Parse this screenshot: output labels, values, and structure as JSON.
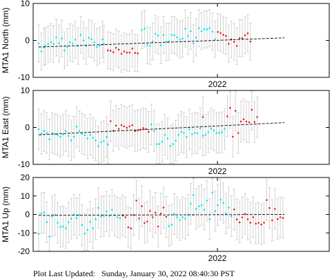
{
  "footer": {
    "label": "Plot Last Updated:",
    "value": "Sunday, January 30, 2022 08:40:30 PST"
  },
  "colors": {
    "series_a": "#00e5ee",
    "series_b": "#e8201c",
    "error_bar": "#c8c8c8",
    "trend": "#000000"
  },
  "chart_data": [
    {
      "type": "scatter",
      "ylabel": "MTA1 North (mm)",
      "xtick_labels": [
        "2022"
      ],
      "ylim": [
        -10,
        10
      ],
      "yticks": [
        -10,
        0,
        10
      ],
      "error": 5,
      "trend": [
        -1.8,
        0.7
      ],
      "series": [
        {
          "color_key": "series_a",
          "points": [
            [
              0,
              -0.8
            ],
            [
              2,
              -3
            ],
            [
              4,
              -1.8
            ],
            [
              5,
              -1.5
            ],
            [
              7,
              -1
            ],
            [
              9,
              -0.5
            ],
            [
              11,
              -1
            ],
            [
              13,
              0.8
            ],
            [
              15,
              -0.8
            ],
            [
              17,
              0.5
            ],
            [
              19,
              -2.7
            ],
            [
              21,
              -1.8
            ],
            [
              23,
              -0.5
            ],
            [
              25,
              -0.8
            ],
            [
              27,
              0.2
            ],
            [
              29,
              -1.5
            ],
            [
              31,
              1.5
            ],
            [
              33,
              0
            ],
            [
              35,
              -1.5
            ],
            [
              37,
              0.7
            ],
            [
              39,
              0.3
            ],
            [
              41,
              -0.5
            ],
            [
              43,
              -1.8
            ],
            [
              45,
              -1.4
            ],
            [
              47,
              0.3
            ],
            [
              48,
              -1
            ]
          ]
        },
        {
          "color_key": "series_b",
          "points": [
            [
              51,
              -2.7
            ],
            [
              53,
              -2.8
            ],
            [
              55,
              -3.2
            ],
            [
              57,
              -2
            ],
            [
              59,
              -2.5
            ],
            [
              61,
              -3.6
            ],
            [
              63,
              -3
            ],
            [
              65,
              -3.3
            ],
            [
              67,
              -3.3
            ],
            [
              69,
              -2.2
            ],
            [
              71,
              -3.4
            ],
            [
              73,
              -3.5
            ]
          ]
        },
        {
          "color_key": "series_a",
          "points": [
            [
              76,
              2.8
            ],
            [
              78,
              3.2
            ],
            [
              80,
              -1.3
            ],
            [
              82,
              -1.5
            ],
            [
              84,
              -0.3
            ],
            [
              86,
              1.8
            ],
            [
              88,
              1.3
            ],
            [
              90,
              -1.3
            ],
            [
              92,
              1.5
            ],
            [
              94,
              -0.4
            ],
            [
              96,
              -0.3
            ],
            [
              98,
              1.5
            ],
            [
              100,
              1.4
            ],
            [
              102,
              0.8
            ],
            [
              104,
              0.2
            ],
            [
              106,
              0.5
            ],
            [
              108,
              3.2
            ],
            [
              110,
              1.2
            ],
            [
              112,
              2.5
            ],
            [
              114,
              -0.8
            ],
            [
              116,
              0.8
            ],
            [
              118,
              3.3
            ],
            [
              120,
              2.5
            ],
            [
              122,
              3
            ],
            [
              124,
              3
            ],
            [
              126,
              3.3
            ],
            [
              128,
              2.4
            ],
            [
              130,
              0.3
            ]
          ]
        },
        {
          "color_key": "series_b",
          "points": [
            [
              132,
              2.3
            ],
            [
              134,
              2
            ],
            [
              136,
              1.5
            ],
            [
              138,
              1.2
            ],
            [
              140,
              -0.9
            ],
            [
              142,
              0.3
            ],
            [
              144,
              -0.4
            ],
            [
              146,
              -1.5
            ],
            [
              148,
              0.6
            ],
            [
              150,
              0.6
            ],
            [
              152,
              1.4
            ],
            [
              154,
              1.9
            ],
            [
              156,
              -0.3
            ]
          ]
        }
      ]
    },
    {
      "type": "scatter",
      "ylabel": "MTA1 East (mm)",
      "xtick_labels": [
        "2022"
      ],
      "ylim": [
        -10,
        10
      ],
      "yticks": [
        -10,
        0,
        10
      ],
      "error": 5.5,
      "trend": [
        -2,
        1.3
      ],
      "series": [
        {
          "color_key": "series_a",
          "points": [
            [
              0,
              -0.5
            ],
            [
              2,
              -1.7
            ],
            [
              4,
              -1
            ],
            [
              6,
              -1.5
            ],
            [
              8,
              -3.2
            ],
            [
              10,
              -1.5
            ],
            [
              12,
              -1.8
            ],
            [
              14,
              -2
            ],
            [
              16,
              -2.5
            ],
            [
              18,
              -1.9
            ],
            [
              20,
              -1
            ],
            [
              22,
              -2.3
            ],
            [
              24,
              -3.5
            ],
            [
              26,
              -2.5
            ],
            [
              28,
              0.2
            ],
            [
              30,
              -1
            ],
            [
              32,
              -1.7
            ],
            [
              34,
              -2.1
            ],
            [
              36,
              -3
            ],
            [
              38,
              -2
            ],
            [
              40,
              -2.8
            ],
            [
              42,
              -3.5
            ],
            [
              44,
              -5.1
            ],
            [
              46,
              -4
            ],
            [
              48,
              -3.7
            ],
            [
              50,
              -2.6
            ],
            [
              51,
              -4.6
            ]
          ]
        },
        {
          "color_key": "series_b",
          "points": [
            [
              53,
              1.7
            ],
            [
              55,
              -0.9
            ],
            [
              57,
              0.5
            ],
            [
              59,
              -0.4
            ],
            [
              61,
              0.6
            ],
            [
              63,
              0.3
            ],
            [
              65,
              -0.1
            ],
            [
              67,
              0.3
            ],
            [
              69,
              0.6
            ],
            [
              71,
              -1
            ],
            [
              73,
              -0.8
            ],
            [
              75,
              -0.6
            ],
            [
              77,
              -0.2
            ],
            [
              79,
              -0.4
            ],
            [
              81,
              -1.2
            ]
          ]
        },
        {
          "color_key": "series_a",
          "points": [
            [
              83,
              0.8
            ],
            [
              85,
              -1
            ],
            [
              87,
              -4.5
            ],
            [
              89,
              -4.5
            ],
            [
              91,
              -3.9
            ],
            [
              93,
              -2
            ],
            [
              95,
              -3
            ],
            [
              97,
              -5
            ],
            [
              99,
              -4.5
            ],
            [
              101,
              -3.6
            ],
            [
              103,
              -2
            ],
            [
              105,
              -1.2
            ],
            [
              107,
              -1.5
            ],
            [
              109,
              -2.6
            ],
            [
              111,
              -0.5
            ],
            [
              113,
              -1.8
            ],
            [
              115,
              -1.5
            ],
            [
              117,
              -1.6
            ],
            [
              119,
              -0.2
            ],
            [
              121,
              -2.2
            ],
            [
              123,
              -2
            ],
            [
              125,
              -1.3
            ],
            [
              127,
              -0.3
            ],
            [
              129,
              -0.8
            ],
            [
              131,
              -1.5
            ],
            [
              133,
              -1.5
            ],
            [
              135,
              -1.3
            ],
            [
              137,
              -0.4
            ]
          ]
        },
        {
          "color_key": "series_b",
          "points": [
            [
              121,
              2.8
            ],
            [
              139,
              3
            ],
            [
              141,
              5.3
            ],
            [
              143,
              -2.5
            ],
            [
              145,
              4.5
            ],
            [
              147,
              -1.5
            ],
            [
              149,
              1.6
            ],
            [
              151,
              2.2
            ],
            [
              153,
              1.6
            ],
            [
              155,
              1.4
            ],
            [
              157,
              4.8
            ],
            [
              159,
              1.5
            ],
            [
              161,
              2.8
            ]
          ]
        }
      ]
    },
    {
      "type": "scatter",
      "ylabel": "MTA1 Up (mm)",
      "xtick_labels": [
        "2022"
      ],
      "ylim": [
        -20,
        20
      ],
      "yticks": [
        -20,
        -10,
        0,
        10,
        20
      ],
      "error": 11,
      "trend": [
        -0.5,
        0
      ],
      "series": [
        {
          "color_key": "series_a",
          "points": [
            [
              0,
              -10.5
            ],
            [
              2,
              0.6
            ],
            [
              4,
              1
            ],
            [
              6,
              -4.2
            ],
            [
              8,
              -12
            ],
            [
              10,
              -1
            ],
            [
              12,
              -0.2
            ],
            [
              14,
              -4.5
            ],
            [
              16,
              -6.8
            ],
            [
              18,
              -6.5
            ],
            [
              20,
              -7.5
            ],
            [
              22,
              -4.3
            ],
            [
              24,
              -2.3
            ],
            [
              26,
              -0.1
            ],
            [
              28,
              -2
            ],
            [
              30,
              -0.3
            ],
            [
              32,
              -5.8
            ],
            [
              34,
              -10.3
            ],
            [
              36,
              -8.3
            ],
            [
              38,
              -4
            ],
            [
              40,
              -7.5
            ],
            [
              42,
              -2.6
            ],
            [
              44,
              3.6
            ],
            [
              46,
              -1.2
            ],
            [
              48,
              -0.8
            ],
            [
              50,
              1.6
            ],
            [
              52,
              -0.8
            ],
            [
              54,
              2.5
            ],
            [
              56,
              -0.5
            ],
            [
              58,
              -1.5
            ],
            [
              60,
              -2
            ]
          ]
        },
        {
          "color_key": "series_b",
          "points": [
            [
              62,
              -0.6
            ],
            [
              64,
              -1.5
            ],
            [
              66,
              -7
            ],
            [
              68,
              -7.5
            ],
            [
              70,
              -0.3
            ],
            [
              72,
              7.5
            ],
            [
              74,
              -2.2
            ],
            [
              76,
              4.5
            ],
            [
              78,
              -4.6
            ],
            [
              80,
              -3.8
            ],
            [
              82,
              1.9
            ],
            [
              84,
              -1.5
            ],
            [
              86,
              1
            ],
            [
              88,
              -6.5
            ],
            [
              90,
              0.5
            ],
            [
              92,
              3.7
            ],
            [
              94,
              -1.3
            ]
          ]
        },
        {
          "color_key": "series_a",
          "points": [
            [
              96,
              -6.3
            ],
            [
              98,
              -5.5
            ],
            [
              100,
              0.2
            ],
            [
              102,
              -1.5
            ],
            [
              104,
              -3
            ],
            [
              106,
              -1.6
            ],
            [
              108,
              -2.3
            ],
            [
              110,
              -0.2
            ],
            [
              112,
              5.8
            ],
            [
              114,
              10.5
            ],
            [
              116,
              3
            ],
            [
              118,
              4.4
            ],
            [
              120,
              5
            ],
            [
              122,
              2.6
            ],
            [
              124,
              7.5
            ],
            [
              126,
              -2.5
            ],
            [
              128,
              11.8
            ],
            [
              130,
              1.8
            ],
            [
              132,
              5
            ],
            [
              134,
              8
            ],
            [
              136,
              6.3
            ],
            [
              138,
              0.5
            ],
            [
              140,
              3.8
            ],
            [
              142,
              -1
            ]
          ]
        },
        {
          "color_key": "series_b",
          "points": [
            [
              144,
              2.7
            ],
            [
              146,
              -2.7
            ],
            [
              148,
              -4.3
            ],
            [
              150,
              -1.6
            ],
            [
              152,
              0.3
            ],
            [
              154,
              -2.6
            ],
            [
              156,
              -4.5
            ],
            [
              158,
              -1.5
            ],
            [
              160,
              -5
            ],
            [
              162,
              -4.6
            ],
            [
              164,
              -5.5
            ],
            [
              166,
              -4.5
            ],
            [
              168,
              7.8
            ],
            [
              170,
              3.5
            ],
            [
              172,
              -3.2
            ],
            [
              174,
              3
            ],
            [
              176,
              -2.5
            ],
            [
              178,
              -1.5
            ],
            [
              180,
              -1.9
            ]
          ]
        }
      ]
    }
  ]
}
